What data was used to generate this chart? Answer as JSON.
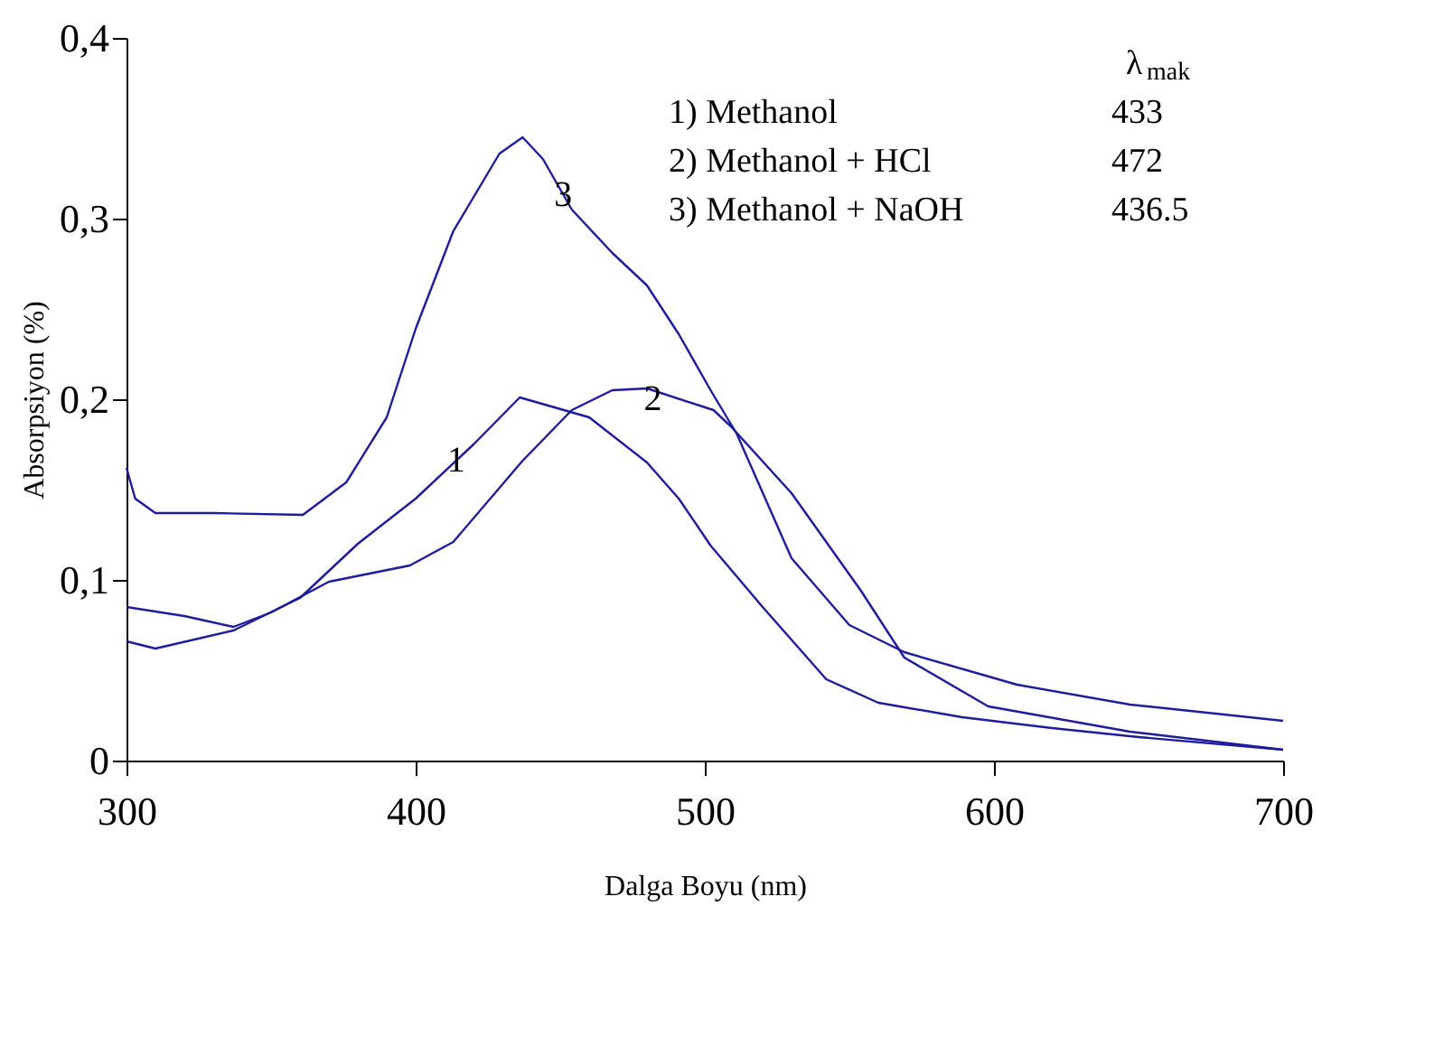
{
  "chart_data": {
    "type": "line",
    "xlabel": "Dalga Boyu (nm)",
    "ylabel": "Absorpsiyon (%)",
    "xlim": [
      300,
      700
    ],
    "xticks": [
      300,
      400,
      500,
      600,
      700
    ],
    "ylim": [
      0,
      0.4
    ],
    "yticks": [
      {
        "value": 0,
        "label": "0"
      },
      {
        "value": 0.1,
        "label": "0,1"
      },
      {
        "value": 0.2,
        "label": "0,2"
      },
      {
        "value": 0.3,
        "label": "0,3"
      },
      {
        "value": 0.4,
        "label": "0,4"
      }
    ],
    "grid": false,
    "marker": "none",
    "line_style": "solid",
    "series": [
      {
        "color": "#1c1c9c",
        "x": [
          300,
          310,
          337,
          360,
          380,
          400,
          420,
          436,
          460,
          480,
          491,
          502,
          520,
          542,
          560,
          589,
          620,
          650,
          700
        ],
        "values": [
          0.066,
          0.062,
          0.072,
          0.09,
          0.12,
          0.145,
          0.175,
          0.201,
          0.19,
          0.165,
          0.145,
          0.119,
          0.085,
          0.045,
          0.032,
          0.024,
          0.018,
          0.013,
          0.006
        ]
      },
      {
        "color": "#1c1c9c",
        "x": [
          300,
          320,
          337,
          350,
          370,
          398,
          413,
          437,
          454,
          468,
          480,
          503,
          509,
          530,
          554,
          569,
          598,
          647,
          700
        ],
        "values": [
          0.085,
          0.08,
          0.074,
          0.082,
          0.099,
          0.108,
          0.121,
          0.166,
          0.194,
          0.205,
          0.206,
          0.194,
          0.185,
          0.148,
          0.094,
          0.057,
          0.03,
          0.016,
          0.006
        ]
      },
      {
        "color": "#1c1c9c",
        "x": [
          300,
          303,
          310,
          330,
          361,
          376,
          390,
          400,
          413,
          429,
          437,
          444,
          454,
          468,
          480,
          491,
          502,
          511,
          530,
          550,
          569,
          608,
          647,
          700
        ],
        "values": [
          0.162,
          0.145,
          0.137,
          0.137,
          0.136,
          0.154,
          0.19,
          0.239,
          0.293,
          0.336,
          0.345,
          0.333,
          0.305,
          0.281,
          0.263,
          0.236,
          0.205,
          0.181,
          0.112,
          0.075,
          0.06,
          0.042,
          0.031,
          0.022
        ]
      }
    ],
    "annotations": [
      "λ$_{mak}$",
      "1) Methanol",
      "433",
      "2) Methanol + HCl",
      "472",
      "3) Methanol + NaOH",
      "436.5",
      {
        "text": "1",
        "x": 414,
        "y": 0.166
      },
      {
        "text": "2",
        "x": 482,
        "y": 0.2
      },
      {
        "text": "3",
        "x": 451,
        "y": 0.313
      }
    ]
  }
}
